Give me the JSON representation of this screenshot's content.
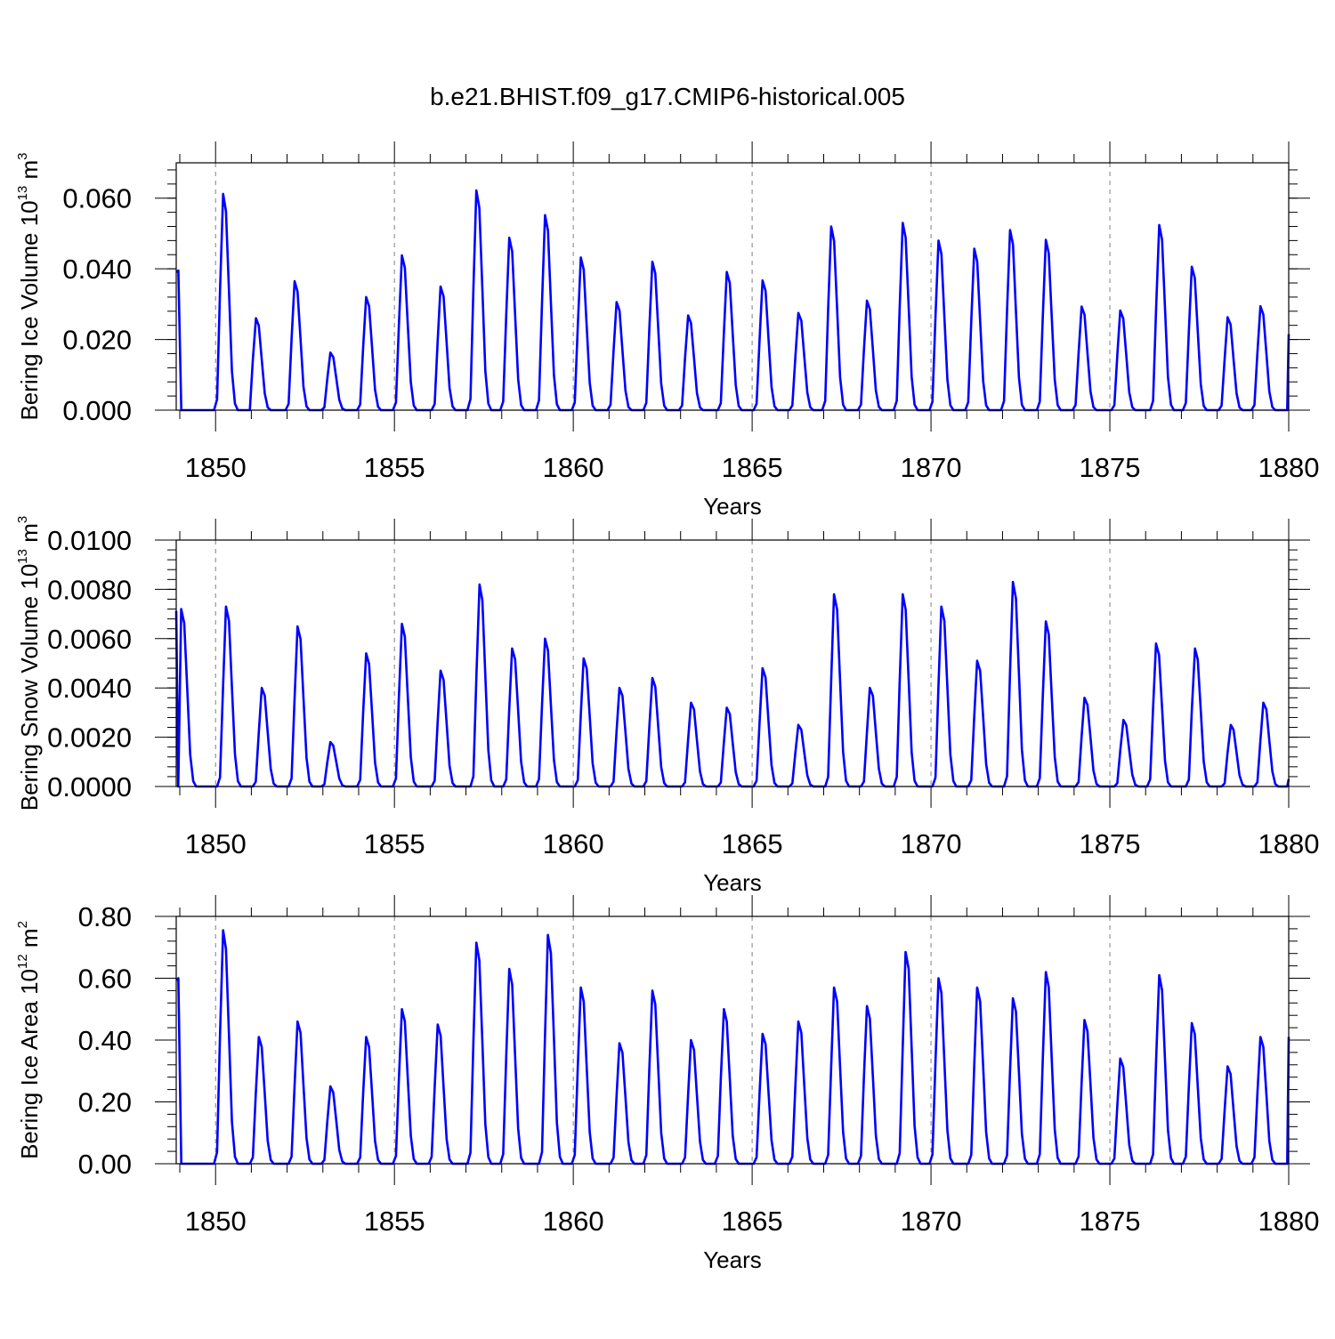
{
  "title": "b.e21.BHIST.f09_g17.CMIP6-historical.005",
  "colors": {
    "line": "#0000ff",
    "axis": "#000000",
    "grid": "#808080"
  },
  "chart_data": [
    {
      "type": "line",
      "ylabel": {
        "text": "Bering Ice Volume 10",
        "exp": "13",
        "unit": " m",
        "unit_exp": "3"
      },
      "xlabel": "Years",
      "xlim": [
        1848.9,
        1880.0
      ],
      "ylim": [
        0.0,
        0.07
      ],
      "x_ticks": [
        1850,
        1855,
        1860,
        1865,
        1870,
        1875,
        1880
      ],
      "x_tick_labels": [
        "1850",
        "1855",
        "1860",
        "1865",
        "1870",
        "1875",
        "1880"
      ],
      "y_ticks": [
        0.0,
        0.02,
        0.04,
        0.06
      ],
      "y_tick_labels": [
        "0.000",
        "0.020",
        "0.040",
        "0.060"
      ],
      "y_minor_step": 0.004,
      "dashed_vlines": [
        1850,
        1855,
        1860,
        1865,
        1870,
        1875
      ],
      "series": [
        {
          "name": "Bering Ice Volume",
          "peaks": [
            [
              1848.96,
              0.0395
            ],
            [
              1850.21,
              0.0612
            ],
            [
              1851.13,
              0.026
            ],
            [
              1852.21,
              0.0365
            ],
            [
              1853.21,
              0.0163
            ],
            [
              1854.21,
              0.032
            ],
            [
              1855.21,
              0.0438
            ],
            [
              1856.29,
              0.035
            ],
            [
              1857.29,
              0.0622
            ],
            [
              1858.21,
              0.0488
            ],
            [
              1859.21,
              0.0552
            ],
            [
              1860.21,
              0.0432
            ],
            [
              1861.21,
              0.0306
            ],
            [
              1862.21,
              0.042
            ],
            [
              1863.21,
              0.0268
            ],
            [
              1864.29,
              0.0391
            ],
            [
              1865.29,
              0.0367
            ],
            [
              1866.29,
              0.0275
            ],
            [
              1867.21,
              0.052
            ],
            [
              1868.21,
              0.031
            ],
            [
              1869.21,
              0.053
            ],
            [
              1870.21,
              0.048
            ],
            [
              1871.21,
              0.0457
            ],
            [
              1872.21,
              0.051
            ],
            [
              1873.21,
              0.0482
            ],
            [
              1874.21,
              0.0293
            ],
            [
              1875.29,
              0.0282
            ],
            [
              1876.38,
              0.0524
            ],
            [
              1877.29,
              0.0406
            ],
            [
              1878.29,
              0.0263
            ],
            [
              1879.21,
              0.0294
            ]
          ]
        }
      ]
    },
    {
      "type": "line",
      "ylabel": {
        "text": "Bering Snow Volume 10",
        "exp": "13",
        "unit": " m",
        "unit_exp": "3"
      },
      "xlabel": "Years",
      "xlim": [
        1848.9,
        1880.0
      ],
      "ylim": [
        0.0,
        0.01
      ],
      "x_ticks": [
        1850,
        1855,
        1860,
        1865,
        1870,
        1875,
        1880
      ],
      "x_tick_labels": [
        "1850",
        "1855",
        "1860",
        "1865",
        "1870",
        "1875",
        "1880"
      ],
      "y_ticks": [
        0.0,
        0.002,
        0.004,
        0.006,
        0.008,
        0.01
      ],
      "y_tick_labels": [
        "0.0000",
        "0.0020",
        "0.0040",
        "0.0060",
        "0.0080",
        "0.0100"
      ],
      "y_minor_step": 0.0004,
      "dashed_vlines": [
        1850,
        1855,
        1860,
        1865,
        1870,
        1875
      ],
      "series": [
        {
          "name": "Bering Snow Volume",
          "peaks": [
            [
              1849.04,
              0.0072
            ],
            [
              1850.29,
              0.0073
            ],
            [
              1851.29,
              0.004
            ],
            [
              1852.29,
              0.0065
            ],
            [
              1853.21,
              0.0018
            ],
            [
              1854.21,
              0.0054
            ],
            [
              1855.21,
              0.0066
            ],
            [
              1856.29,
              0.0047
            ],
            [
              1857.38,
              0.0082
            ],
            [
              1858.29,
              0.0056
            ],
            [
              1859.21,
              0.006
            ],
            [
              1860.29,
              0.0052
            ],
            [
              1861.29,
              0.004
            ],
            [
              1862.21,
              0.0044
            ],
            [
              1863.29,
              0.0034
            ],
            [
              1864.29,
              0.0032
            ],
            [
              1865.29,
              0.0048
            ],
            [
              1866.29,
              0.0025
            ],
            [
              1867.29,
              0.0078
            ],
            [
              1868.29,
              0.004
            ],
            [
              1869.21,
              0.0078
            ],
            [
              1870.29,
              0.0073
            ],
            [
              1871.29,
              0.0051
            ],
            [
              1872.29,
              0.0083
            ],
            [
              1873.21,
              0.0067
            ],
            [
              1874.29,
              0.0036
            ],
            [
              1875.38,
              0.0027
            ],
            [
              1876.29,
              0.0058
            ],
            [
              1877.38,
              0.0056
            ],
            [
              1878.38,
              0.0025
            ],
            [
              1879.29,
              0.0034
            ]
          ]
        }
      ]
    },
    {
      "type": "line",
      "ylabel": {
        "text": "Bering Ice Area 10",
        "exp": "12",
        "unit": " m",
        "unit_exp": "2"
      },
      "xlabel": "Years",
      "xlim": [
        1848.9,
        1880.0
      ],
      "ylim": [
        0.0,
        0.8
      ],
      "x_ticks": [
        1850,
        1855,
        1860,
        1865,
        1870,
        1875,
        1880
      ],
      "x_tick_labels": [
        "1850",
        "1855",
        "1860",
        "1865",
        "1870",
        "1875",
        "1880"
      ],
      "y_ticks": [
        0.0,
        0.2,
        0.4,
        0.6,
        0.8
      ],
      "y_tick_labels": [
        "0.00",
        "0.20",
        "0.40",
        "0.60",
        "0.80"
      ],
      "y_minor_step": 0.04,
      "dashed_vlines": [
        1850,
        1855,
        1860,
        1865,
        1870,
        1875
      ],
      "series": [
        {
          "name": "Bering Ice Area",
          "peaks": [
            [
              1848.96,
              0.6
            ],
            [
              1850.21,
              0.755
            ],
            [
              1851.21,
              0.41
            ],
            [
              1852.29,
              0.46
            ],
            [
              1853.21,
              0.25
            ],
            [
              1854.21,
              0.41
            ],
            [
              1855.21,
              0.5
            ],
            [
              1856.21,
              0.45
            ],
            [
              1857.29,
              0.715
            ],
            [
              1858.21,
              0.63
            ],
            [
              1859.29,
              0.74
            ],
            [
              1860.21,
              0.57
            ],
            [
              1861.29,
              0.39
            ],
            [
              1862.21,
              0.56
            ],
            [
              1863.29,
              0.4
            ],
            [
              1864.21,
              0.5
            ],
            [
              1865.29,
              0.42
            ],
            [
              1866.29,
              0.46
            ],
            [
              1867.29,
              0.57
            ],
            [
              1868.21,
              0.51
            ],
            [
              1869.29,
              0.685
            ],
            [
              1870.21,
              0.6
            ],
            [
              1871.29,
              0.57
            ],
            [
              1872.29,
              0.535
            ],
            [
              1873.21,
              0.62
            ],
            [
              1874.29,
              0.465
            ],
            [
              1875.29,
              0.34
            ],
            [
              1876.38,
              0.61
            ],
            [
              1877.29,
              0.455
            ],
            [
              1878.29,
              0.315
            ],
            [
              1879.21,
              0.41
            ]
          ]
        }
      ]
    }
  ]
}
